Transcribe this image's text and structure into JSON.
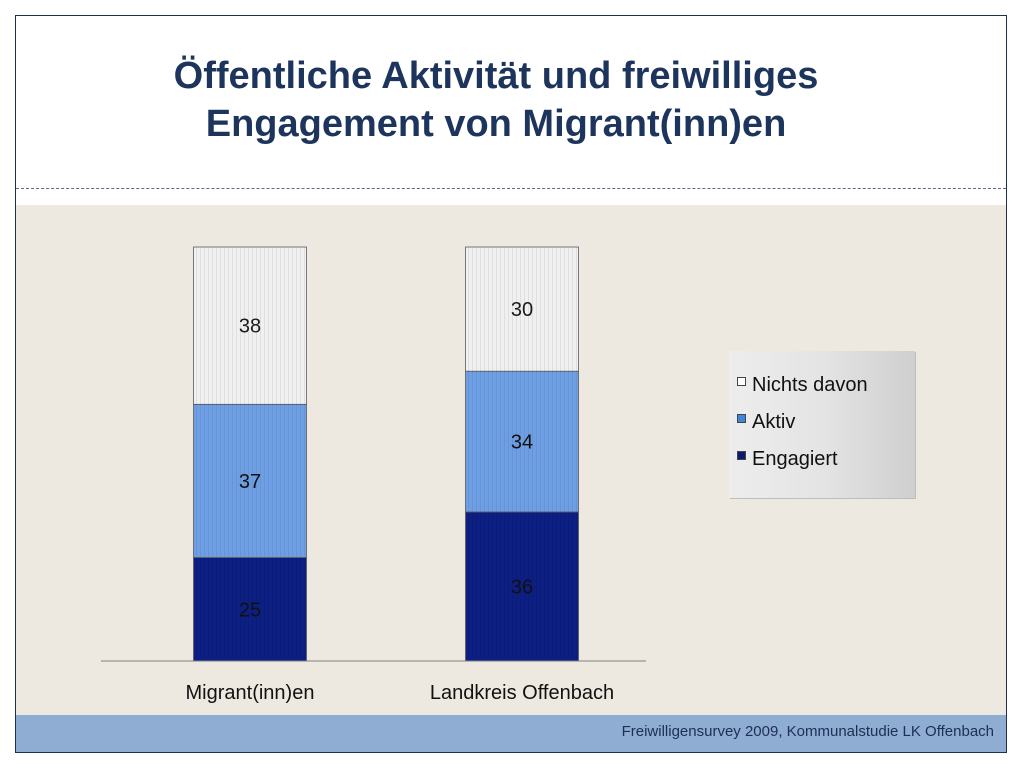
{
  "slide": {
    "title_line1": "Öffentliche Aktivität und freiwilliges",
    "title_line2": "Engagement von Migrant(inn)en",
    "source": "Freiwilligensurvey 2009, Kommunalstudie LK Offenbach"
  },
  "chart_data": {
    "type": "bar",
    "stacked": true,
    "categories": [
      "Migrant(inn)en",
      "Landkreis Offenbach"
    ],
    "series": [
      {
        "name": "Engagiert",
        "values": [
          25,
          36
        ],
        "color": "#0d1f82"
      },
      {
        "name": "Aktiv",
        "values": [
          37,
          34
        ],
        "color": "#6e9fe4"
      },
      {
        "name": "Nichts davon",
        "values": [
          38,
          30
        ],
        "color": "#f0f0f0"
      }
    ],
    "ylim": [
      0,
      100
    ],
    "grid": false,
    "legend_position": "right",
    "title": "",
    "xlabel": "",
    "ylabel": ""
  }
}
